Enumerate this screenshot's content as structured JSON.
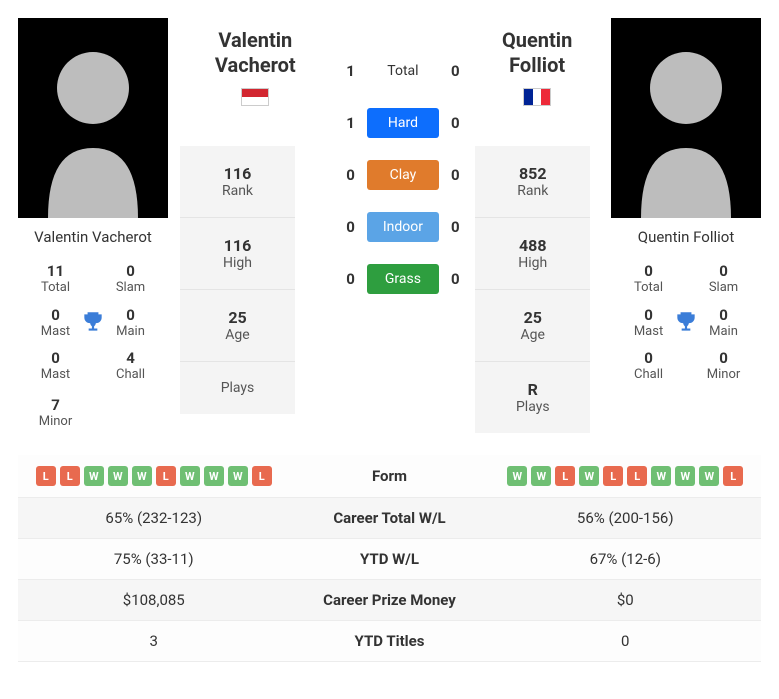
{
  "colors": {
    "hard": "#0d6efd",
    "clay": "#e07b2c",
    "indoor": "#5ba4e6",
    "grass": "#2e9e3f",
    "win": "#6fbf73",
    "loss": "#e86a4f",
    "trophy": "#3b7dd8",
    "silhouette": "#bdbdbd"
  },
  "p1": {
    "name": "Valentin Vacherot",
    "cardName": "Valentin Vacherot",
    "flag": "mc",
    "rank": {
      "rank": "116",
      "high": "116",
      "age": "25",
      "plays": ""
    },
    "titles": {
      "total": "11",
      "slam": "0",
      "mast": "0",
      "main": "0",
      "chall": "4",
      "minor": "7"
    }
  },
  "p2": {
    "name": "Quentin Folliot",
    "cardName": "Quentin Folliot",
    "flag": "fr",
    "rank": {
      "rank": "852",
      "high": "488",
      "age": "25",
      "plays": "R"
    },
    "titles": {
      "total": "0",
      "slam": "0",
      "mast": "0",
      "main": "0",
      "chall": "0",
      "minor": "0"
    }
  },
  "h2h": [
    {
      "l": "1",
      "label": "Total",
      "r": "0",
      "surface": "plain"
    },
    {
      "l": "1",
      "label": "Hard",
      "r": "0",
      "surface": "hard"
    },
    {
      "l": "0",
      "label": "Clay",
      "r": "0",
      "surface": "clay"
    },
    {
      "l": "0",
      "label": "Indoor",
      "r": "0",
      "surface": "indoor"
    },
    {
      "l": "0",
      "label": "Grass",
      "r": "0",
      "surface": "grass"
    }
  ],
  "labels": {
    "rank": "Rank",
    "high": "High",
    "age": "Age",
    "plays": "Plays",
    "total": "Total",
    "slam": "Slam",
    "mast": "Mast",
    "main": "Main",
    "chall": "Chall",
    "minor": "Minor",
    "form": "Form",
    "careerWL": "Career Total W/L",
    "ytdWL": "YTD W/L",
    "prize": "Career Prize Money",
    "ytdTitles": "YTD Titles"
  },
  "form": {
    "p1": [
      "L",
      "L",
      "W",
      "W",
      "W",
      "L",
      "W",
      "W",
      "W",
      "L"
    ],
    "p2": [
      "W",
      "W",
      "L",
      "W",
      "L",
      "L",
      "W",
      "W",
      "W",
      "L"
    ]
  },
  "stats": {
    "careerWL": {
      "p1": "65% (232-123)",
      "p2": "56% (200-156)"
    },
    "ytdWL": {
      "p1": "75% (33-11)",
      "p2": "67% (12-6)"
    },
    "prize": {
      "p1": "$108,085",
      "p2": "$0"
    },
    "ytdTitles": {
      "p1": "3",
      "p2": "0"
    }
  }
}
